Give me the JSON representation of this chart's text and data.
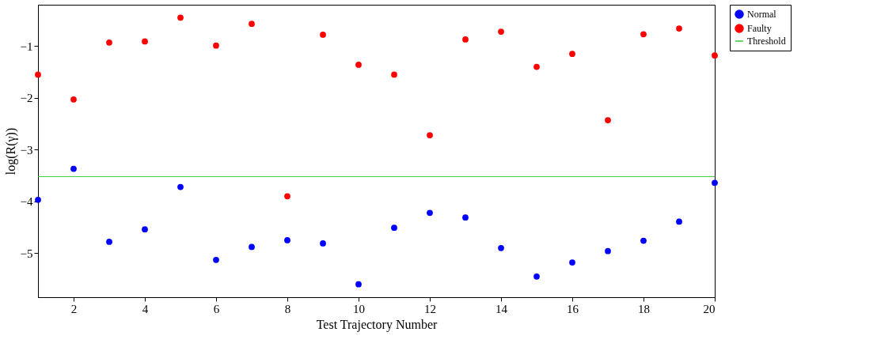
{
  "chart_data": {
    "type": "scatter",
    "xlabel": "Test Trajectory Number",
    "ylabel": "log(R(γ))",
    "x": [
      1,
      2,
      3,
      4,
      5,
      6,
      7,
      8,
      9,
      10,
      11,
      12,
      13,
      14,
      15,
      16,
      17,
      18,
      19,
      20
    ],
    "xlim": [
      1,
      20
    ],
    "xticks": [
      2,
      4,
      6,
      8,
      10,
      12,
      14,
      16,
      18,
      20
    ],
    "ylim": [
      -5.85,
      -0.2
    ],
    "yticks": [
      -5,
      -4,
      -3,
      -2,
      -1
    ],
    "grid": false,
    "legend": "top right",
    "series": [
      {
        "name": "Normal",
        "color": "#0000ff",
        "marker": "circle",
        "values": [
          -3.97,
          -3.37,
          -4.78,
          -4.54,
          -3.72,
          -5.13,
          -4.88,
          -4.75,
          -4.81,
          -5.6,
          -4.51,
          -4.22,
          -4.31,
          -4.9,
          -5.45,
          -5.18,
          -4.96,
          -4.76,
          -4.39,
          -3.64
        ]
      },
      {
        "name": "Faulty",
        "color": "#ff0000",
        "marker": "circle",
        "values": [
          -1.55,
          -2.03,
          -0.93,
          -0.91,
          -0.45,
          -0.99,
          -0.57,
          -3.9,
          -0.78,
          -1.36,
          -1.55,
          -2.72,
          -0.87,
          -0.72,
          -1.4,
          -1.15,
          -2.43,
          -0.77,
          -0.66,
          -1.18
        ]
      },
      {
        "name": "Threshold",
        "type": "line",
        "color": "#33cc33",
        "x": [
          1,
          20
        ],
        "values": [
          -3.52,
          -3.52
        ],
        "line_style": "solid",
        "marker": "none"
      }
    ]
  }
}
